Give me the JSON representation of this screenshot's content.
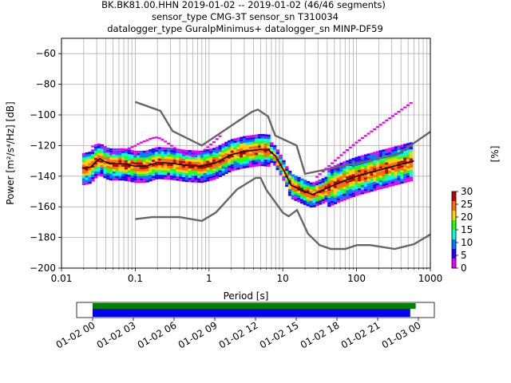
{
  "chart_data": {
    "type": "heatmap",
    "title_lines": [
      "BK.BK81.00.HHN   2019-01-02 -- 2019-01-02  (46/46 segments)",
      "sensor_type CMG-3T sensor_sn T310034",
      "datalogger_type GuralpMinimus+ datalogger_sn MINP-DF59"
    ],
    "xlabel": "Period [s]",
    "ylabel": "Power [m²/s⁴/Hz] [dB]",
    "xscale": "log",
    "xlim": [
      0.01,
      1000
    ],
    "ylim": [
      -200,
      -50
    ],
    "grid": true,
    "x_ticks": [
      {
        "value": 0.01,
        "label": "0.01"
      },
      {
        "value": 0.1,
        "label": "0.1"
      },
      {
        "value": 1,
        "label": "1"
      },
      {
        "value": 10,
        "label": "10"
      },
      {
        "value": 100,
        "label": "100"
      },
      {
        "value": 1000,
        "label": "1000"
      }
    ],
    "y_ticks": [
      {
        "value": -60,
        "label": "−60"
      },
      {
        "value": -80,
        "label": "−80"
      },
      {
        "value": -100,
        "label": "−100"
      },
      {
        "value": -120,
        "label": "−120"
      },
      {
        "value": -140,
        "label": "−140"
      },
      {
        "value": -160,
        "label": "−160"
      },
      {
        "value": -180,
        "label": "−180"
      },
      {
        "value": -200,
        "label": "−200"
      }
    ],
    "noise_models": {
      "color": "#666666",
      "high": [
        [
          0.1,
          -91.5
        ],
        [
          0.22,
          -97.4
        ],
        [
          0.32,
          -110.5
        ],
        [
          0.8,
          -120
        ],
        [
          3.8,
          -98
        ],
        [
          4.6,
          -96.5
        ],
        [
          6.3,
          -101
        ],
        [
          7.9,
          -113.5
        ],
        [
          15.4,
          -120
        ],
        [
          20,
          -138.5
        ],
        [
          354.8,
          -126
        ],
        [
          1000,
          -111
        ]
      ],
      "low": [
        [
          0.1,
          -168
        ],
        [
          0.17,
          -166.7
        ],
        [
          0.4,
          -166.7
        ],
        [
          0.8,
          -169.2
        ],
        [
          1.24,
          -163.7
        ],
        [
          2.4,
          -148.6
        ],
        [
          4.3,
          -141.1
        ],
        [
          5,
          -141.1
        ],
        [
          6,
          -149
        ],
        [
          10,
          -163.8
        ],
        [
          12,
          -166.2
        ],
        [
          15.6,
          -162.1
        ],
        [
          21.9,
          -177.5
        ],
        [
          31.6,
          -185
        ],
        [
          45,
          -187.5
        ],
        [
          70,
          -187.5
        ],
        [
          101,
          -185
        ],
        [
          154,
          -185
        ],
        [
          328,
          -187.5
        ],
        [
          600,
          -184.4
        ],
        [
          1000,
          -178
        ]
      ]
    },
    "mean_curve": {
      "color": "#000000",
      "points": [
        [
          0.02,
          -135
        ],
        [
          0.025,
          -134
        ],
        [
          0.03,
          -130
        ],
        [
          0.033,
          -128.5
        ],
        [
          0.037,
          -130
        ],
        [
          0.045,
          -132
        ],
        [
          0.07,
          -132
        ],
        [
          0.1,
          -133.5
        ],
        [
          0.14,
          -133.5
        ],
        [
          0.2,
          -131
        ],
        [
          0.3,
          -131.5
        ],
        [
          0.5,
          -133
        ],
        [
          0.8,
          -133.5
        ],
        [
          1.2,
          -131.5
        ],
        [
          2,
          -126
        ],
        [
          3,
          -124
        ],
        [
          5,
          -122.5
        ],
        [
          6.5,
          -123
        ],
        [
          8,
          -127
        ],
        [
          10,
          -135
        ],
        [
          13,
          -146
        ],
        [
          18,
          -149
        ],
        [
          25,
          -152
        ],
        [
          35,
          -149
        ],
        [
          60,
          -144
        ],
        [
          100,
          -140
        ],
        [
          200,
          -136
        ],
        [
          500,
          -131
        ],
        [
          600,
          -130
        ]
      ]
    },
    "colorbar": {
      "label": "[%]",
      "range": [
        0,
        30
      ],
      "ticks": [
        "0",
        "5",
        "10",
        "15",
        "20",
        "25",
        "30"
      ],
      "colors": [
        "#ffffff",
        "#e800ff",
        "#2200ff",
        "#0078ff",
        "#00ffd0",
        "#22ff00",
        "#ffd000",
        "#ff6a00",
        "#c00000"
      ]
    },
    "data_coverage": {
      "ticks": [
        "01-02 00",
        "01-02 03",
        "01-02 06",
        "01-02 09",
        "01-02 12",
        "01-02 15",
        "01-02 18",
        "01-02 21",
        "01-03 00"
      ],
      "bars": [
        {
          "name": "green",
          "color": "#008000",
          "start_h": 0,
          "end_h": 23.8
        },
        {
          "name": "blue",
          "color": "#0000ee",
          "start_h": 0,
          "end_h": 23.4
        }
      ]
    }
  }
}
